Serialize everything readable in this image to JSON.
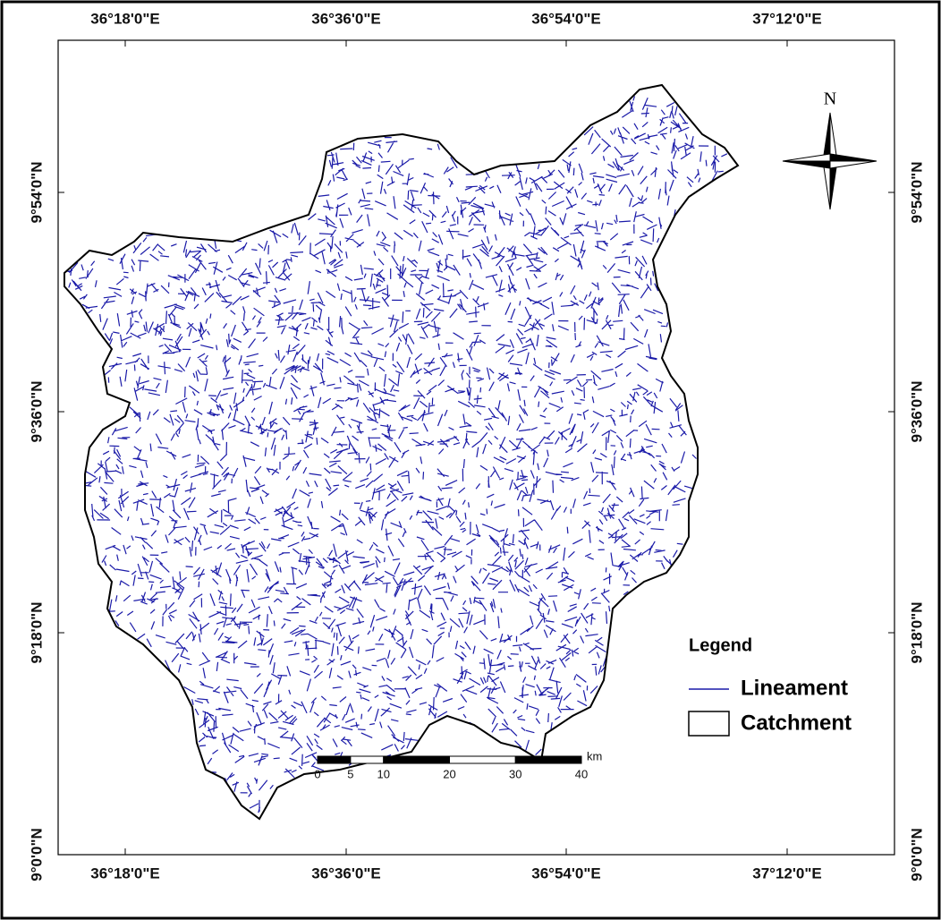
{
  "map": {
    "x_labels": [
      "36°18'0\"E",
      "36°36'0\"E",
      "36°54'0\"E",
      "37°12'0\"E"
    ],
    "y_labels": [
      "9°54'0\"N",
      "9°36'0\"N",
      "9°18'0\"N",
      "9°0'0\"N"
    ],
    "north": "N",
    "legend": {
      "title": "Legend",
      "items": [
        "Lineament",
        "Catchment"
      ]
    },
    "scale_bar": {
      "ticks": [
        0,
        5,
        10,
        20,
        30,
        40
      ],
      "unit": "km"
    }
  }
}
